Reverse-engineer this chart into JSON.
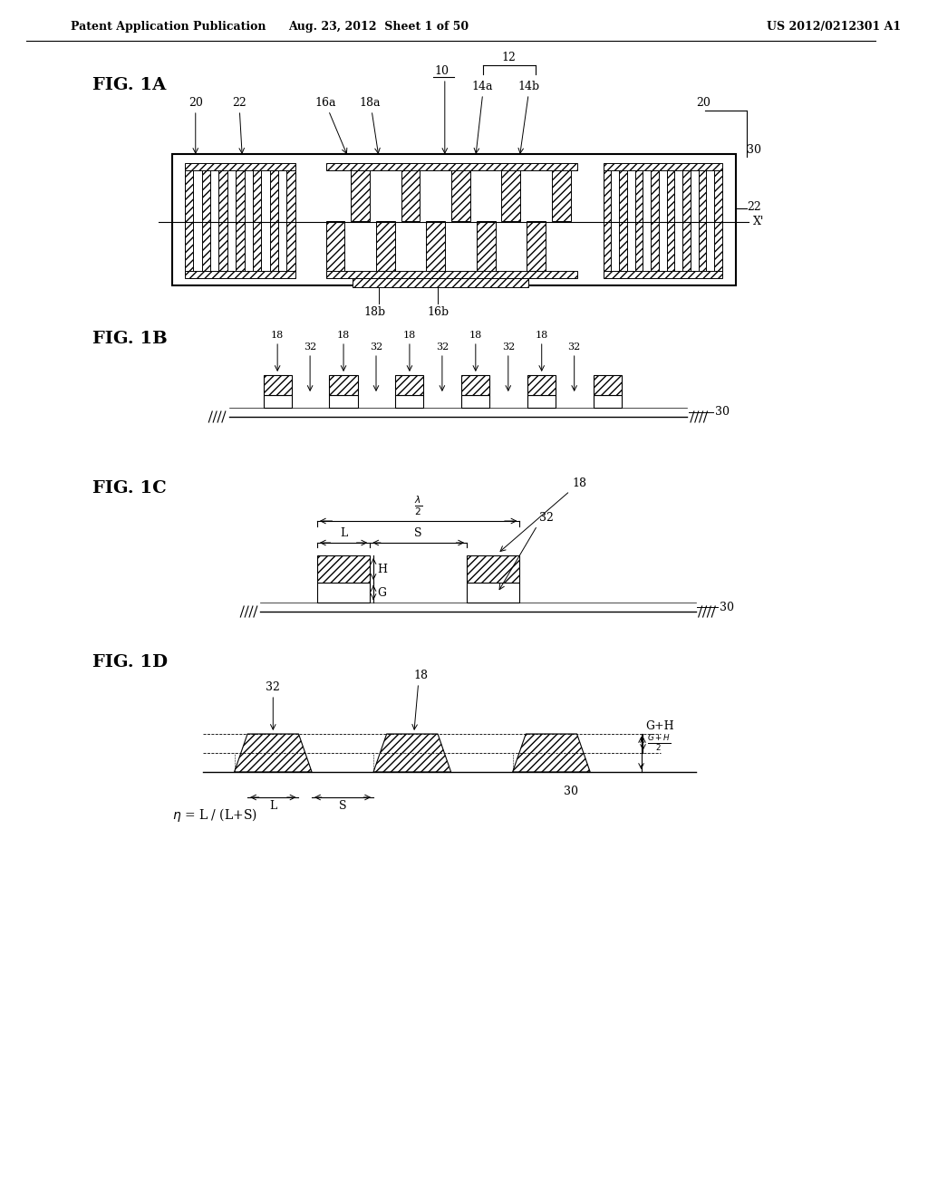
{
  "header_left": "Patent Application Publication",
  "header_mid": "Aug. 23, 2012  Sheet 1 of 50",
  "header_right": "US 2012/0212301 A1",
  "bg_color": "#ffffff",
  "line_color": "#000000",
  "fig_label_fontsize": 14,
  "annotation_fontsize": 9,
  "header_fontsize": 9
}
